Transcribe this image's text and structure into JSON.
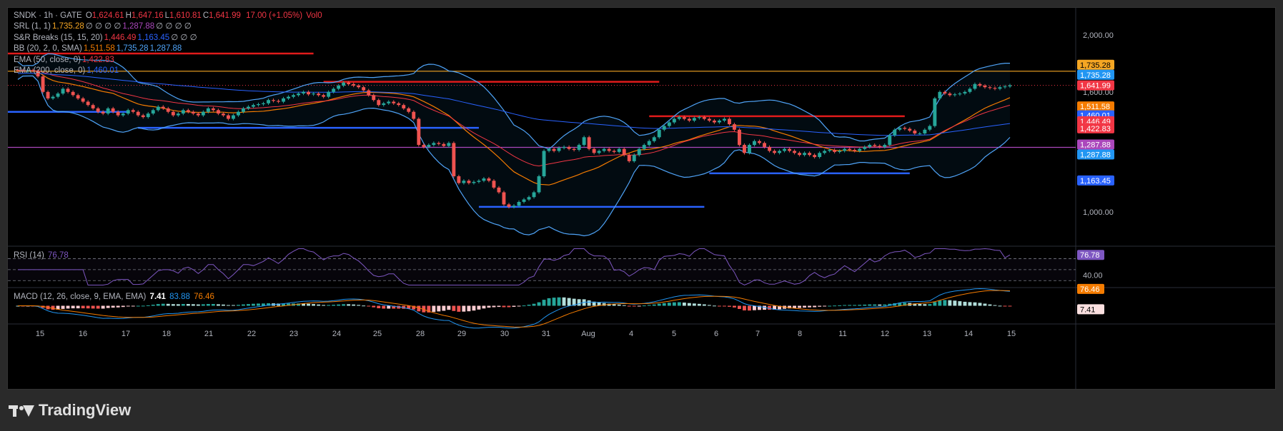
{
  "header": {
    "symbol_line": "SNDK · 1h · GATE",
    "ohlc": [
      {
        "k": "O",
        "v": "1,624.61"
      },
      {
        "k": "H",
        "v": "1,647.16"
      },
      {
        "k": "L",
        "v": "1,610.81"
      },
      {
        "k": "C",
        "v": "1,641.99"
      }
    ],
    "change": "17.00 (+1.05%)",
    "vol": "Vol0"
  },
  "indicators": [
    {
      "label": "SRL (1, 1)",
      "values": [
        {
          "t": "1,735.28",
          "c": "#f5a623"
        },
        {
          "t": "∅ ∅ ∅ ∅",
          "c": "#b2b5be"
        },
        {
          "t": "1,287.88",
          "c": "#ab47bc"
        },
        {
          "t": "∅ ∅ ∅ ∅",
          "c": "#b2b5be"
        }
      ]
    },
    {
      "label": "S&R Breaks (15, 15, 20)",
      "values": [
        {
          "t": "1,446.49",
          "c": "#f23645"
        },
        {
          "t": "1,163.45",
          "c": "#2962ff"
        },
        {
          "t": "∅ ∅ ∅",
          "c": "#b2b5be"
        }
      ]
    },
    {
      "label": "BB (20, 2, 0, SMA)",
      "values": [
        {
          "t": "1,511.58",
          "c": "#f57c00"
        },
        {
          "t": "1,735.28",
          "c": "#4fa3f7"
        },
        {
          "t": "1,287.88",
          "c": "#4fa3f7"
        }
      ]
    },
    {
      "label": "EMA (50, close, 0)",
      "values": [
        {
          "t": "1,422.83",
          "c": "#f23645"
        }
      ]
    },
    {
      "label": "EMA (200, close, 0)",
      "values": [
        {
          "t": "1,460.01",
          "c": "#2962ff"
        }
      ]
    }
  ],
  "rsi": {
    "label": "RSI (14)",
    "value": "76.78",
    "axis_label": "40.00",
    "value_color": "#7e57c2"
  },
  "macd": {
    "label": "MACD (12, 26, close, 9, EMA, EMA)",
    "v1": "7.41",
    "v2": "83.88",
    "v3": "76.46"
  },
  "price_badges": [
    {
      "text": "1,735.28",
      "bg": "#f5a623",
      "fg": "#000"
    },
    {
      "text": "1,735.28",
      "bg": "#2196f3",
      "fg": "#fff"
    },
    {
      "text": "1,641.99",
      "bg": "#f23645",
      "fg": "#fff"
    },
    {
      "text": "1,511.58",
      "bg": "#f57c00",
      "fg": "#fff"
    },
    {
      "text": "1,460.01",
      "bg": "#2962ff",
      "fg": "#fff"
    },
    {
      "text": "1,446.49",
      "bg": "#f23645",
      "fg": "#fff"
    },
    {
      "text": "1,422.83",
      "bg": "#f23645",
      "fg": "#fff"
    },
    {
      "text": "1,287.88",
      "bg": "#ab47bc",
      "fg": "#fff"
    },
    {
      "text": "1,287.88",
      "bg": "#2196f3",
      "fg": "#fff"
    },
    {
      "text": "1,163.45",
      "bg": "#2962ff",
      "fg": "#fff"
    }
  ],
  "macd_badges": [
    {
      "text": "76.46",
      "bg": "#f57c00",
      "fg": "#fff"
    },
    {
      "text": "7.41",
      "bg": "#fbe0e0",
      "fg": "#000"
    }
  ],
  "rsi_badge": {
    "text": "76.78",
    "bg": "#7e57c2",
    "fg": "#fff"
  },
  "brand": "TradingView",
  "chart_data": {
    "type": "candlestick",
    "scale": "log",
    "x_ticks": [
      "15",
      "16",
      "17",
      "18",
      "21",
      "22",
      "23",
      "24",
      "25",
      "28",
      "29",
      "30",
      "31",
      "Aug",
      "4",
      "5",
      "6",
      "7",
      "8",
      "11",
      "12",
      "13",
      "14",
      "15"
    ],
    "y_ticks": [
      "2,000.00",
      "1,600.00",
      "1,000.00"
    ],
    "y_tick_values": [
      2000,
      1600,
      1000
    ],
    "closes": [
      1740,
      1735,
      1742,
      1738,
      1700,
      1600,
      1560,
      1570,
      1590,
      1620,
      1600,
      1580,
      1560,
      1540,
      1520,
      1500,
      1480,
      1470,
      1500,
      1480,
      1460,
      1470,
      1490,
      1480,
      1460,
      1450,
      1470,
      1490,
      1510,
      1500,
      1480,
      1460,
      1470,
      1490,
      1480,
      1470,
      1460,
      1480,
      1500,
      1490,
      1470,
      1460,
      1440,
      1460,
      1480,
      1500,
      1510,
      1520,
      1525,
      1530,
      1550,
      1545,
      1540,
      1560,
      1570,
      1580,
      1590,
      1600,
      1585,
      1590,
      1580,
      1570,
      1600,
      1620,
      1640,
      1660,
      1650,
      1640,
      1630,
      1610,
      1580,
      1550,
      1520,
      1530,
      1540,
      1530,
      1520,
      1500,
      1480,
      1440,
      1300,
      1290,
      1300,
      1310,
      1305,
      1295,
      1310,
      1150,
      1120,
      1130,
      1120,
      1125,
      1130,
      1140,
      1130,
      1100,
      1080,
      1030,
      1020,
      1025,
      1040,
      1050,
      1060,
      1080,
      1150,
      1270,
      1280,
      1270,
      1285,
      1290,
      1280,
      1275,
      1300,
      1340,
      1280,
      1260,
      1270,
      1280,
      1270,
      1265,
      1280,
      1250,
      1220,
      1250,
      1280,
      1300,
      1320,
      1340,
      1380,
      1400,
      1420,
      1440,
      1450,
      1440,
      1430,
      1445,
      1450,
      1440,
      1430,
      1420,
      1430,
      1440,
      1410,
      1380,
      1300,
      1260,
      1300,
      1320,
      1310,
      1290,
      1270,
      1260,
      1270,
      1280,
      1270,
      1260,
      1250,
      1260,
      1250,
      1240,
      1260,
      1270,
      1275,
      1265,
      1270,
      1280,
      1275,
      1270,
      1280,
      1290,
      1300,
      1295,
      1290,
      1300,
      1350,
      1380,
      1390,
      1385,
      1375,
      1360,
      1360,
      1380,
      1400,
      1560,
      1600,
      1590,
      1580,
      1585,
      1590,
      1600,
      1620,
      1650,
      1640,
      1630,
      1625,
      1620,
      1630,
      1635,
      1641.99
    ],
    "series": [
      {
        "name": "SRL (1, 1)",
        "values": [
          1735.28,
          1287.88
        ]
      },
      {
        "name": "S&R Breaks (15, 15, 20)",
        "values": [
          1446.49,
          1163.45
        ]
      },
      {
        "name": "BB (20, 2, 0, SMA)",
        "values": [
          1511.58,
          1735.28,
          1287.88
        ]
      },
      {
        "name": "EMA (50, close, 0)",
        "values": [
          1422.83
        ]
      },
      {
        "name": "EMA (200, close, 0)",
        "values": [
          1460.01
        ]
      }
    ],
    "levels": [
      1735.28,
      1641.99,
      1287.88
    ],
    "break_segments": [
      {
        "from": 0,
        "to": 59,
        "price": 1860,
        "color": "#e01b1b"
      },
      {
        "from": 0,
        "to": 22,
        "price": 1480,
        "color": "#2962ff"
      },
      {
        "from": 24,
        "to": 92,
        "price": 1390,
        "color": "#2962ff"
      },
      {
        "from": 61,
        "to": 128,
        "price": 1665,
        "color": "#e01b1b"
      },
      {
        "from": 126,
        "to": 177,
        "price": 1455,
        "color": "#e01b1b"
      },
      {
        "from": 92,
        "to": 137,
        "price": 1020,
        "color": "#2962ff"
      },
      {
        "from": 138,
        "to": 178,
        "price": 1163.45,
        "color": "#2962ff"
      }
    ],
    "rsi_ylim": [
      20,
      90
    ],
    "rsi_bands": [
      30,
      50,
      70
    ],
    "macd_ylim": [
      -90,
      90
    ]
  }
}
